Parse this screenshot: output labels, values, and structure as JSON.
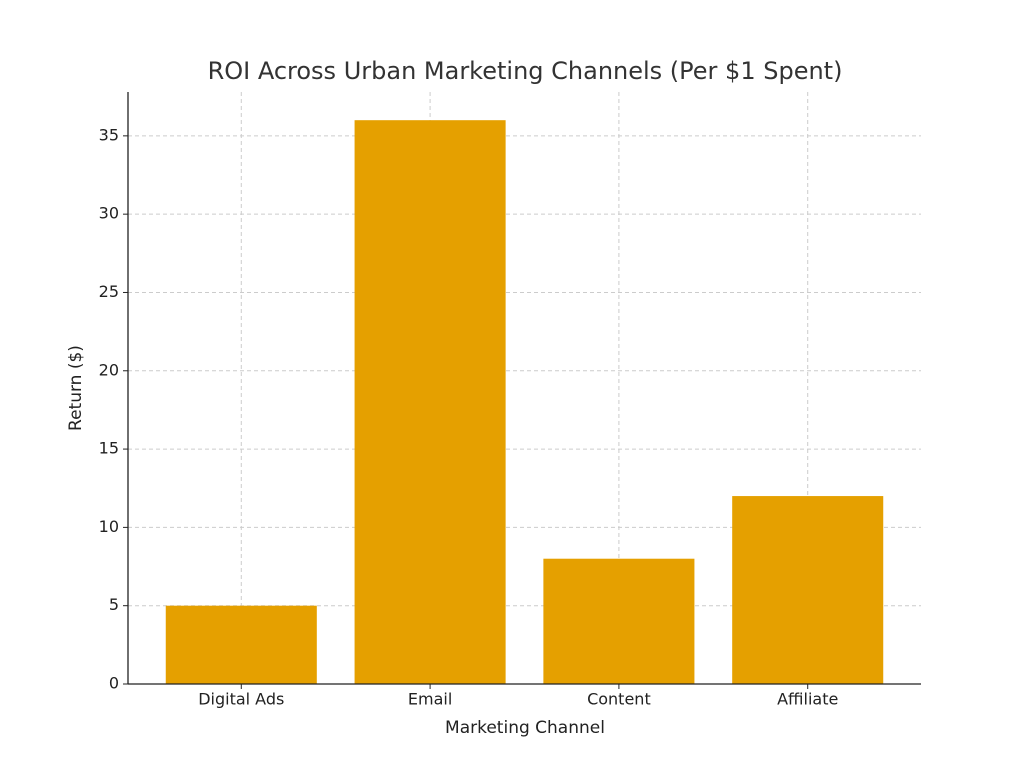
{
  "chart_data": {
    "type": "bar",
    "title": "ROI Across Urban Marketing Channels (Per $1 Spent)",
    "x_label": "Marketing Channel",
    "y_label": "Return ($)",
    "categories": [
      "Digital Ads",
      "Email",
      "Content",
      "Affiliate"
    ],
    "values": [
      5,
      36,
      8,
      12
    ],
    "color": "#e5a000",
    "ylim": [
      0,
      37.8
    ],
    "yticks": [
      0,
      5,
      10,
      15,
      20,
      25,
      30,
      35
    ],
    "grid": true
  }
}
